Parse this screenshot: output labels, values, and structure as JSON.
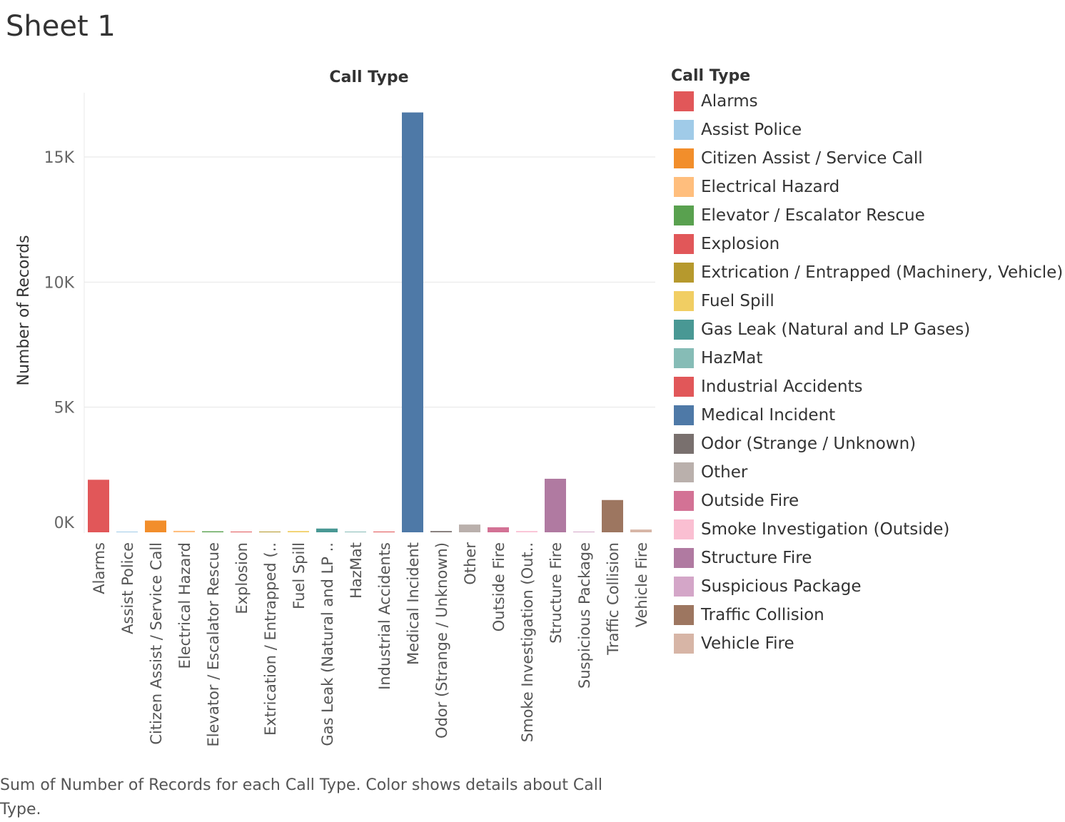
{
  "sheet": {
    "title": "Sheet 1"
  },
  "chart_data": {
    "type": "bar",
    "title": "Call Type",
    "xlabel": "",
    "ylabel": "Number of Records",
    "ylim": [
      -400,
      17200
    ],
    "y_ticks": [
      0,
      5000,
      10000,
      15000
    ],
    "y_tick_labels": [
      "0K",
      "5K",
      "10K",
      "15K"
    ],
    "grid": true,
    "legend_position": "right",
    "categories": [
      "Alarms",
      "Assist Police",
      "Citizen Assist / Service Call",
      "Electrical Hazard",
      "Elevator / Escalator Rescue",
      "Explosion",
      "Extrication / Entrapped (..",
      "Fuel Spill",
      "Gas Leak (Natural and LP ..",
      "HazMat",
      "Industrial Accidents",
      "Medical Incident",
      "Odor (Strange / Unknown)",
      "Other",
      "Outside Fire",
      "Smoke Investigation (Out..",
      "Structure Fire",
      "Suspicious Package",
      "Traffic Collision",
      "Vehicle Fire"
    ],
    "values": [
      2100,
      5,
      470,
      60,
      40,
      10,
      30,
      50,
      150,
      20,
      30,
      16780,
      50,
      310,
      200,
      50,
      2140,
      10,
      1290,
      110
    ],
    "colors": [
      "#e15759",
      "#a0cbe8",
      "#f28e2b",
      "#ffbe7d",
      "#59a14f",
      "#e15759",
      "#b6992d",
      "#f1ce63",
      "#499894",
      "#86bcb6",
      "#e15759",
      "#4e79a7",
      "#79706e",
      "#bab0ac",
      "#d37295",
      "#fabfd2",
      "#b07aa1",
      "#d4a6c8",
      "#9d7660",
      "#d7b5a6"
    ]
  },
  "legend": {
    "title": "Call Type",
    "items": [
      {
        "label": "Alarms",
        "color": "#e15759"
      },
      {
        "label": "Assist Police",
        "color": "#a0cbe8"
      },
      {
        "label": "Citizen Assist / Service Call",
        "color": "#f28e2b"
      },
      {
        "label": "Electrical Hazard",
        "color": "#ffbe7d"
      },
      {
        "label": "Elevator / Escalator Rescue",
        "color": "#59a14f"
      },
      {
        "label": "Explosion",
        "color": "#e15759"
      },
      {
        "label": "Extrication / Entrapped (Machinery, Vehicle)",
        "color": "#b6992d"
      },
      {
        "label": "Fuel Spill",
        "color": "#f1ce63"
      },
      {
        "label": "Gas Leak (Natural and LP Gases)",
        "color": "#499894"
      },
      {
        "label": "HazMat",
        "color": "#86bcb6"
      },
      {
        "label": "Industrial Accidents",
        "color": "#e15759"
      },
      {
        "label": "Medical Incident",
        "color": "#4e79a7"
      },
      {
        "label": "Odor (Strange / Unknown)",
        "color": "#79706e"
      },
      {
        "label": "Other",
        "color": "#bab0ac"
      },
      {
        "label": "Outside Fire",
        "color": "#d37295"
      },
      {
        "label": "Smoke Investigation (Outside)",
        "color": "#fabfd2"
      },
      {
        "label": "Structure Fire",
        "color": "#b07aa1"
      },
      {
        "label": "Suspicious Package",
        "color": "#d4a6c8"
      },
      {
        "label": "Traffic Collision",
        "color": "#9d7660"
      },
      {
        "label": "Vehicle Fire",
        "color": "#d7b5a6"
      }
    ]
  },
  "caption": "Sum of Number of Records for each Call Type.  Color shows details about Call Type."
}
